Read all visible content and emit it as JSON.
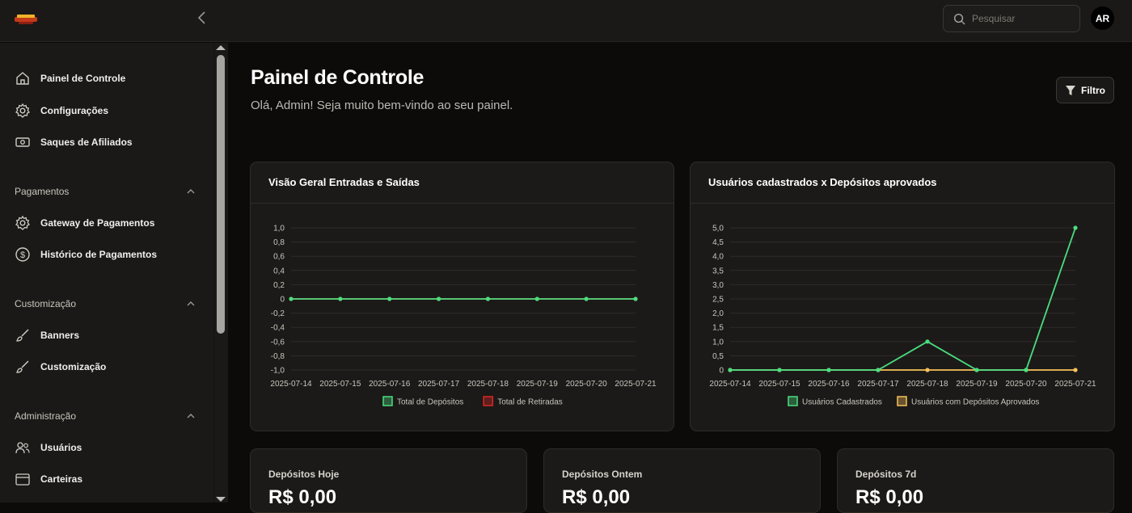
{
  "header": {
    "search_placeholder": "Pesquisar",
    "avatar_initials": "AR"
  },
  "sidebar": {
    "items_top": [
      {
        "label": "Painel de Controle",
        "icon": "home-icon"
      },
      {
        "label": "Configurações",
        "icon": "gear-icon"
      },
      {
        "label": "Saques de Afiliados",
        "icon": "cash-icon"
      }
    ],
    "sections": [
      {
        "title": "Pagamentos",
        "items": [
          {
            "label": "Gateway de Pagamentos",
            "icon": "gear-icon"
          },
          {
            "label": "Histórico de Pagamentos",
            "icon": "dollar-circle-icon"
          }
        ]
      },
      {
        "title": "Customização",
        "items": [
          {
            "label": "Banners",
            "icon": "brush-icon"
          },
          {
            "label": "Customização",
            "icon": "brush-icon"
          }
        ]
      },
      {
        "title": "Administração",
        "items": [
          {
            "label": "Usuários",
            "icon": "users-icon"
          },
          {
            "label": "Carteiras",
            "icon": "wallet-icon"
          }
        ]
      }
    ]
  },
  "main": {
    "title": "Painel de Controle",
    "subtitle": "Olá, Admin! Seja muito bem-vindo ao seu painel.",
    "filter_label": "Filtro"
  },
  "chart_data": [
    {
      "type": "line",
      "title": "Visão Geral Entradas e Saídas",
      "x": [
        "2025-07-14",
        "2025-07-15",
        "2025-07-16",
        "2025-07-17",
        "2025-07-18",
        "2025-07-19",
        "2025-07-20",
        "2025-07-21"
      ],
      "series": [
        {
          "name": "Total de Depósitos",
          "values": [
            0,
            0,
            0,
            0,
            0,
            0,
            0,
            0
          ],
          "color": "#4ade80"
        },
        {
          "name": "Total de Retiradas",
          "values": [
            0,
            0,
            0,
            0,
            0,
            0,
            0,
            0
          ],
          "color": "#dc2626"
        }
      ],
      "yticks": [
        "1,0",
        "0,8",
        "0,6",
        "0,4",
        "0,2",
        "0",
        "-0,2",
        "-0,4",
        "-0,6",
        "-0,8",
        "-1,0"
      ],
      "ylim": [
        -1,
        1
      ],
      "grid": true,
      "legend": "bottom"
    },
    {
      "type": "line",
      "title": "Usuários cadastrados x Depósitos aprovados",
      "x": [
        "2025-07-14",
        "2025-07-15",
        "2025-07-16",
        "2025-07-17",
        "2025-07-18",
        "2025-07-19",
        "2025-07-20",
        "2025-07-21"
      ],
      "series": [
        {
          "name": "Usuários Cadastrados",
          "values": [
            0,
            0,
            0,
            0,
            1,
            0,
            0,
            5
          ],
          "color": "#4ade80"
        },
        {
          "name": "Usuários com Depósitos Aprovados",
          "values": [
            0,
            0,
            0,
            0,
            0,
            0,
            0,
            0
          ],
          "color": "#f5c15a"
        }
      ],
      "yticks": [
        "5,0",
        "4,5",
        "4,0",
        "3,5",
        "3,0",
        "2,5",
        "2,0",
        "1,5",
        "1,0",
        "0,5",
        "0"
      ],
      "ylim": [
        0,
        5
      ],
      "grid": true,
      "legend": "bottom"
    }
  ],
  "stats": [
    {
      "label": "Depósitos Hoje",
      "value": "R$ 0,00"
    },
    {
      "label": "Depósitos Ontem",
      "value": "R$ 0,00"
    },
    {
      "label": "Depósitos 7d",
      "value": "R$ 0,00"
    }
  ]
}
